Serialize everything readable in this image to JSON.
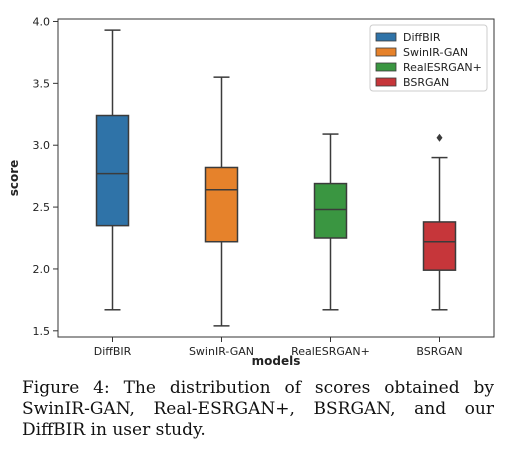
{
  "chart_data": {
    "type": "box",
    "title": "",
    "xlabel": "models",
    "ylabel": "score",
    "ylim": [
      1.45,
      4.02
    ],
    "yticks": [
      "1.5",
      "2.0",
      "2.5",
      "3.0",
      "3.5",
      "4.0"
    ],
    "grid": false,
    "legend_position": "top-right",
    "categories": [
      "DiffBIR",
      "SwinIR-GAN",
      "RealESRGAN+",
      "BSRGAN"
    ],
    "series": [
      {
        "name": "DiffBIR",
        "color": "#2f73a8",
        "whisker_low": 1.67,
        "q1": 2.35,
        "median": 2.77,
        "q3": 3.24,
        "whisker_high": 3.93,
        "outliers": []
      },
      {
        "name": "SwinIR-GAN",
        "color": "#e6822b",
        "whisker_low": 1.54,
        "q1": 2.22,
        "median": 2.64,
        "q3": 2.82,
        "whisker_high": 3.55,
        "outliers": []
      },
      {
        "name": "RealESRGAN+",
        "color": "#3a9641",
        "whisker_low": 1.67,
        "q1": 2.25,
        "median": 2.48,
        "q3": 2.69,
        "whisker_high": 3.09,
        "outliers": []
      },
      {
        "name": "BSRGAN",
        "color": "#c6363a",
        "whisker_low": 1.67,
        "q1": 1.99,
        "median": 2.22,
        "q3": 2.38,
        "whisker_high": 2.9,
        "outliers": [
          3.06
        ]
      }
    ]
  },
  "caption": "Figure 4:  The distribution of scores obtained by SwinIR-GAN, Real-ESRGAN+, BSRGAN, and our DiffBIR in user study."
}
